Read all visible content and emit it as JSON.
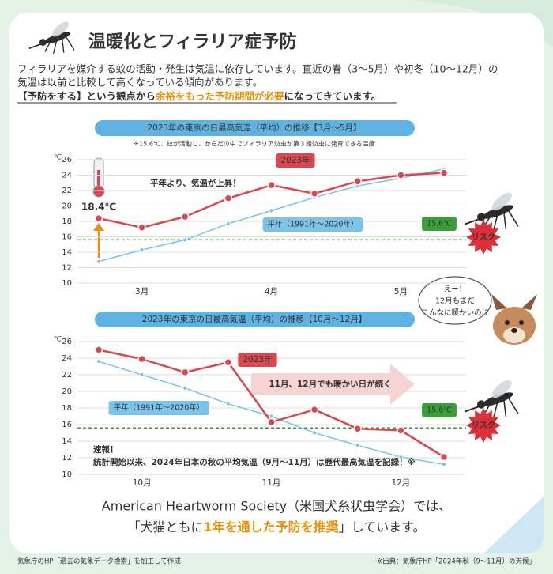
{
  "header": {
    "title": "温暖化とフィラリア症予防",
    "intro": [
      "フィラリアを媒介する蚊の活動・発生は気温に依存しています。直近の春（3～5月）や初冬（10～12月）の",
      "気温は以前と比較して高くなっている傾向があります。"
    ],
    "emphasis": {
      "before": "【予防をする】という観点から",
      "highlight": "余裕をもった予防期間が必要",
      "after": "になってきています。"
    }
  },
  "chart_data": [
    {
      "type": "line",
      "title": "2023年の東京の日最高気温（平均）の推移【3月～5月】",
      "subtitle": "※15.6℃：蚊が活動し、からだの中でフィラリア幼虫が第３期幼虫に発育できる温度",
      "y_unit": "℃",
      "categories": [
        null,
        "3月",
        null,
        null,
        "4月",
        null,
        null,
        "5月",
        null
      ],
      "series": [
        {
          "name": "2023年",
          "color": "#d9474f",
          "values": [
            18.4,
            17.2,
            18.6,
            21.0,
            22.7,
            21.6,
            23.2,
            24.0,
            24.3
          ],
          "value_labels": [
            "18.4℃",
            null,
            null,
            null,
            null,
            null,
            null,
            null,
            null
          ]
        },
        {
          "name": "平年（1991年～2020年）",
          "color": "#7cc3ea",
          "values": [
            12.8,
            14.3,
            15.6,
            17.7,
            19.4,
            21.1,
            22.6,
            23.6,
            24.8
          ]
        }
      ],
      "ylim": [
        10,
        26
      ],
      "yticks": [
        10,
        12,
        14,
        16,
        18,
        20,
        22,
        24,
        26
      ],
      "grid": true,
      "threshold": 15.6,
      "threshold_label": "15.6℃",
      "threshold_color": "#3a9e3a",
      "annotations": [
        "平年より、気温が上昇！"
      ],
      "risk_label": "リスク"
    },
    {
      "type": "line",
      "title": "2023年の東京の日最高気温（平均）の推移【10月～12月】",
      "y_unit": "℃",
      "categories": [
        null,
        "10月",
        null,
        null,
        "11月",
        null,
        null,
        "12月",
        null
      ],
      "series": [
        {
          "name": "2023年",
          "color": "#d9474f",
          "values": [
            25.0,
            23.9,
            22.3,
            23.5,
            16.3,
            17.8,
            15.5,
            15.3,
            12.1
          ]
        },
        {
          "name": "平年（1991年～2020年）",
          "color": "#7cc3ea",
          "values": [
            23.6,
            22.0,
            20.4,
            18.5,
            17.0,
            15.0,
            13.5,
            12.1,
            11.2
          ]
        }
      ],
      "ylim": [
        10,
        26
      ],
      "yticks": [
        10,
        12,
        14,
        16,
        18,
        20,
        22,
        24,
        26
      ],
      "grid": true,
      "threshold": 15.6,
      "threshold_label": "15.6℃",
      "threshold_color": "#3a9e3a",
      "annotations": [
        "11月、12月でも暖かい日が続く",
        "速報！",
        "統計開始以来、2024年日本の秋の平均気温（9月～11月）は歴代最高気温を記録！※"
      ],
      "risk_label": "リスク"
    }
  ],
  "dog_bubble": [
    "えー！",
    "12月もまだ",
    "こんなに暖かいの!?"
  ],
  "conclusion": {
    "line1": "American Heartworm Society（米国犬糸状虫学会）では、",
    "line2_before": "「犬猫ともに",
    "line2_highlight": "1年を通した予防を推奨",
    "line2_after": "」しています。"
  },
  "footer": {
    "left": "気象庁のHP「過去の気象データ検索」を加工して作成",
    "right": "※出典：気象庁HP「2024年秋（9～11月）の天候」"
  }
}
